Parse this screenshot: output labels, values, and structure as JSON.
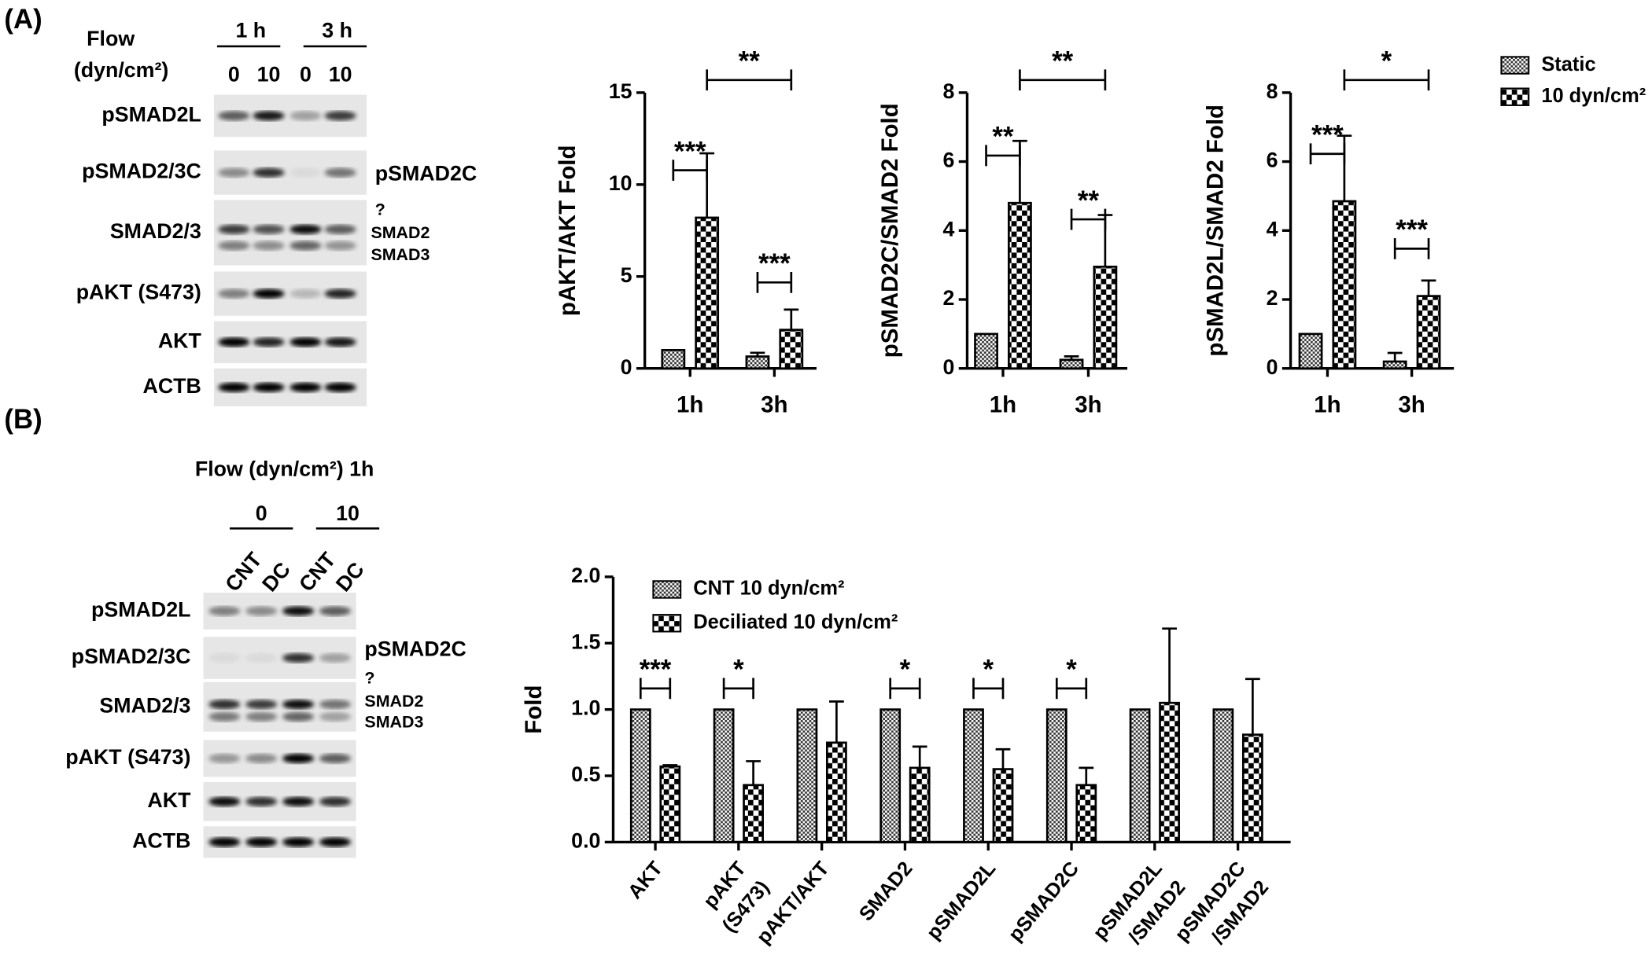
{
  "figure_a": {
    "label": "(A)",
    "flow_label": [
      "Flow",
      "(dyn/cm²)"
    ],
    "time_headers": [
      "1 h",
      "3 h"
    ],
    "lane_labels": [
      "0",
      "10",
      "0",
      "10"
    ],
    "row_labels": [
      "pSMAD2L",
      "pSMAD2/3C",
      "SMAD2/3",
      "pAKT (S473)",
      "AKT",
      "ACTB"
    ],
    "side_labels": [
      "pSMAD2C",
      "?",
      "SMAD2",
      "SMAD3"
    ]
  },
  "figure_b": {
    "label": "(B)",
    "flow_label": "Flow (dyn/cm²) 1h",
    "dose_headers": [
      "0",
      "10"
    ],
    "lane_labels": [
      "CNT",
      "DC",
      "CNT",
      "DC"
    ],
    "row_labels": [
      "pSMAD2L",
      "pSMAD2/3C",
      "SMAD2/3",
      "pAKT (S473)",
      "AKT",
      "ACTB"
    ],
    "side_labels": [
      "pSMAD2C",
      "?",
      "SMAD2",
      "SMAD3"
    ]
  },
  "chart_data": [
    {
      "type": "bar",
      "y_label": "pAKT/AKT Fold",
      "categories": [
        "1h",
        "3h"
      ],
      "series": [
        {
          "pattern": "fine-checker",
          "values": [
            1,
            0.65
          ],
          "errors": [
            null,
            0.2
          ]
        },
        {
          "pattern": "coarse-checker",
          "values": [
            8.2,
            2.1
          ],
          "errors": [
            3.5,
            1.1
          ]
        }
      ],
      "within_group_significance": [
        "***",
        "***"
      ],
      "between_group_significance": "**",
      "ylim": [
        0,
        15
      ],
      "yticks": [
        0,
        5,
        10,
        15
      ]
    },
    {
      "type": "bar",
      "y_label": "pSMAD2C/SMAD2 Fold",
      "categories": [
        "1h",
        "3h"
      ],
      "series": [
        {
          "pattern": "fine-checker",
          "values": [
            1,
            0.25
          ],
          "errors": [
            null,
            0.1
          ]
        },
        {
          "pattern": "coarse-checker",
          "values": [
            4.8,
            2.95
          ],
          "errors": [
            1.8,
            1.5
          ]
        }
      ],
      "within_group_significance": [
        "**",
        "**"
      ],
      "between_group_significance": "**",
      "ylim": [
        0,
        8
      ],
      "yticks": [
        0,
        2,
        4,
        6,
        8
      ]
    },
    {
      "type": "bar",
      "y_label": "pSMAD2L/SMAD2 Fold",
      "categories": [
        "1h",
        "3h"
      ],
      "series": [
        {
          "name": "Static",
          "pattern": "fine-checker",
          "values": [
            1,
            0.2
          ],
          "errors": [
            null,
            0.25
          ]
        },
        {
          "name": "10 dyn/cm²",
          "pattern": "coarse-checker",
          "values": [
            4.85,
            2.1
          ],
          "errors": [
            1.9,
            0.45
          ]
        }
      ],
      "within_group_significance": [
        "***",
        "***"
      ],
      "between_group_significance": "*",
      "legend": "outside-right",
      "ylim": [
        0,
        8
      ],
      "yticks": [
        0,
        2,
        4,
        6,
        8
      ]
    },
    {
      "type": "bar",
      "y_label": "Fold",
      "categories": [
        [
          "AKT"
        ],
        [
          "pAKT",
          "(S473)"
        ],
        [
          "pAKT/AKT"
        ],
        [
          "SMAD2"
        ],
        [
          "pSMAD2L"
        ],
        [
          "pSMAD2C"
        ],
        [
          "pSMAD2L",
          "/SMAD2"
        ],
        [
          "pSMAD2C",
          "/SMAD2"
        ]
      ],
      "series": [
        {
          "name": "CNT 10 dyn/cm²",
          "pattern": "fine-checker",
          "values": [
            1,
            1,
            1,
            1,
            1,
            1,
            1,
            1
          ],
          "errors": [
            null,
            null,
            null,
            null,
            null,
            null,
            null,
            null
          ]
        },
        {
          "name": "Deciliated 10 dyn/cm²",
          "pattern": "coarse-checker",
          "values": [
            0.57,
            0.43,
            0.75,
            0.56,
            0.55,
            0.43,
            1.05,
            0.81
          ],
          "errors": [
            0.01,
            0.18,
            0.31,
            0.16,
            0.15,
            0.13,
            0.56,
            0.42
          ]
        }
      ],
      "within_group_significance": [
        "***",
        "*",
        null,
        "*",
        "*",
        "*",
        null,
        null
      ],
      "legend": "top-left",
      "ylim": [
        0,
        2
      ],
      "yticks": [
        {
          "value": 0,
          "label": "0.0"
        },
        {
          "value": 0.5,
          "label": "0.5"
        },
        {
          "value": 1,
          "label": "1.0"
        },
        {
          "value": 1.5,
          "label": "1.5"
        },
        {
          "value": 2,
          "label": "2.0"
        }
      ]
    }
  ]
}
